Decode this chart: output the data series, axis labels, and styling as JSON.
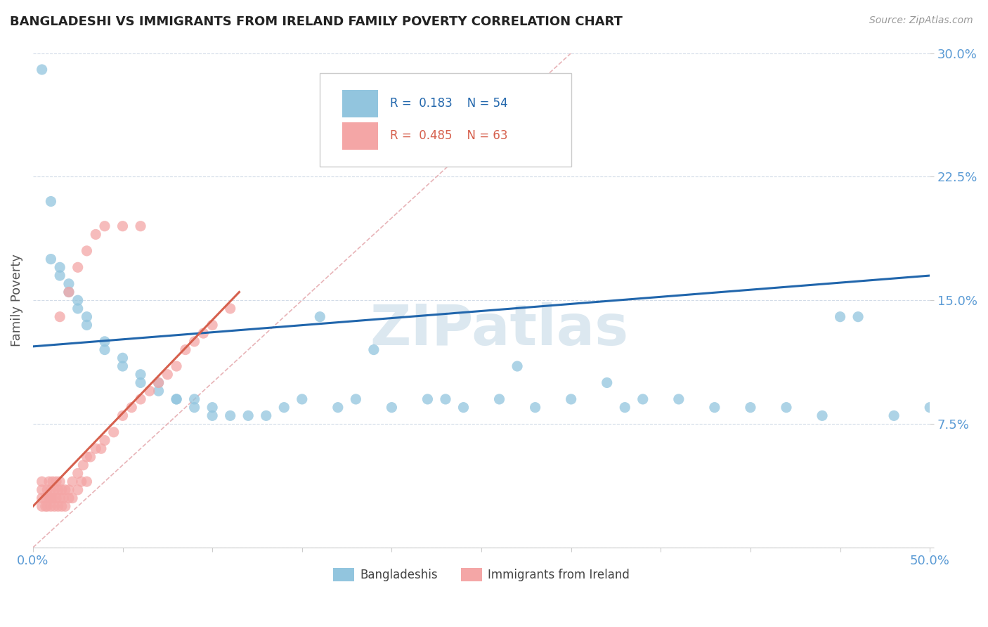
{
  "title": "BANGLADESHI VS IMMIGRANTS FROM IRELAND FAMILY POVERTY CORRELATION CHART",
  "source": "Source: ZipAtlas.com",
  "ylabel": "Family Poverty",
  "xlim": [
    0,
    0.5
  ],
  "ylim": [
    0,
    0.3
  ],
  "yticks": [
    0.0,
    0.075,
    0.15,
    0.225,
    0.3
  ],
  "yticklabels": [
    "",
    "7.5%",
    "15.0%",
    "22.5%",
    "30.0%"
  ],
  "xtick_positions": [
    0.0,
    0.05,
    0.1,
    0.15,
    0.2,
    0.25,
    0.3,
    0.35,
    0.4,
    0.45,
    0.5
  ],
  "blue_R": 0.183,
  "blue_N": 54,
  "pink_R": 0.485,
  "pink_N": 63,
  "blue_color": "#92c5de",
  "pink_color": "#f4a6a6",
  "blue_line_color": "#2166ac",
  "pink_line_color": "#d6604d",
  "axis_color": "#5b9bd5",
  "grid_color": "#d3dce8",
  "diag_color": "#e8b4b8",
  "watermark": "ZIPatlas",
  "blue_scatter_x": [
    0.005,
    0.01,
    0.01,
    0.015,
    0.015,
    0.02,
    0.02,
    0.025,
    0.025,
    0.03,
    0.03,
    0.04,
    0.04,
    0.05,
    0.05,
    0.06,
    0.06,
    0.07,
    0.07,
    0.08,
    0.08,
    0.09,
    0.09,
    0.1,
    0.1,
    0.11,
    0.12,
    0.13,
    0.14,
    0.15,
    0.17,
    0.18,
    0.2,
    0.22,
    0.24,
    0.26,
    0.28,
    0.3,
    0.32,
    0.34,
    0.36,
    0.38,
    0.4,
    0.42,
    0.44,
    0.46,
    0.48,
    0.5,
    0.27,
    0.33,
    0.45,
    0.16,
    0.19,
    0.23
  ],
  "blue_scatter_y": [
    0.29,
    0.21,
    0.175,
    0.17,
    0.165,
    0.16,
    0.155,
    0.15,
    0.145,
    0.14,
    0.135,
    0.125,
    0.12,
    0.115,
    0.11,
    0.105,
    0.1,
    0.1,
    0.095,
    0.09,
    0.09,
    0.09,
    0.085,
    0.085,
    0.08,
    0.08,
    0.08,
    0.08,
    0.085,
    0.09,
    0.085,
    0.09,
    0.085,
    0.09,
    0.085,
    0.09,
    0.085,
    0.09,
    0.1,
    0.09,
    0.09,
    0.085,
    0.085,
    0.085,
    0.08,
    0.14,
    0.08,
    0.085,
    0.11,
    0.085,
    0.14,
    0.14,
    0.12,
    0.09
  ],
  "pink_scatter_x": [
    0.005,
    0.005,
    0.005,
    0.005,
    0.007,
    0.007,
    0.008,
    0.008,
    0.009,
    0.009,
    0.01,
    0.01,
    0.01,
    0.011,
    0.011,
    0.012,
    0.012,
    0.013,
    0.013,
    0.014,
    0.014,
    0.015,
    0.015,
    0.016,
    0.016,
    0.017,
    0.018,
    0.018,
    0.02,
    0.02,
    0.022,
    0.022,
    0.025,
    0.025,
    0.027,
    0.028,
    0.03,
    0.03,
    0.032,
    0.035,
    0.038,
    0.04,
    0.045,
    0.05,
    0.055,
    0.06,
    0.065,
    0.07,
    0.075,
    0.08,
    0.085,
    0.09,
    0.095,
    0.1,
    0.11,
    0.015,
    0.02,
    0.025,
    0.03,
    0.035,
    0.04,
    0.05,
    0.06
  ],
  "pink_scatter_y": [
    0.025,
    0.03,
    0.035,
    0.04,
    0.025,
    0.03,
    0.025,
    0.035,
    0.03,
    0.04,
    0.025,
    0.03,
    0.035,
    0.03,
    0.04,
    0.025,
    0.035,
    0.03,
    0.04,
    0.025,
    0.035,
    0.03,
    0.04,
    0.025,
    0.035,
    0.03,
    0.025,
    0.035,
    0.03,
    0.035,
    0.03,
    0.04,
    0.035,
    0.045,
    0.04,
    0.05,
    0.04,
    0.055,
    0.055,
    0.06,
    0.06,
    0.065,
    0.07,
    0.08,
    0.085,
    0.09,
    0.095,
    0.1,
    0.105,
    0.11,
    0.12,
    0.125,
    0.13,
    0.135,
    0.145,
    0.14,
    0.155,
    0.17,
    0.18,
    0.19,
    0.195,
    0.195,
    0.195
  ],
  "blue_line_x0": 0.0,
  "blue_line_y0": 0.122,
  "blue_line_x1": 0.5,
  "blue_line_y1": 0.165,
  "pink_line_x0": 0.0,
  "pink_line_y0": 0.025,
  "pink_line_x1": 0.115,
  "pink_line_y1": 0.155,
  "diag_line_x0": 0.0,
  "diag_line_y0": 0.0,
  "diag_line_x1": 0.3,
  "diag_line_y1": 0.3
}
